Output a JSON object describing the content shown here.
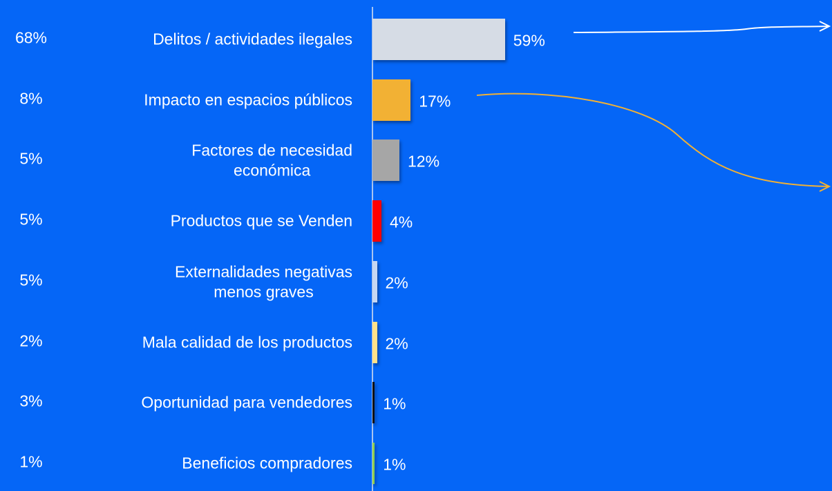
{
  "chart_data": {
    "type": "bar",
    "categories": [
      "Delitos / actividades ilegales",
      "Impacto en espacios públicos",
      "Factores de necesidad\neconómica",
      "Productos que se Venden",
      "Externalidades negativas\nmenos graves",
      "Mala calidad de los productos",
      "Oportunidad para vendedores",
      "Beneficios compradores"
    ],
    "values": [
      59,
      17,
      12,
      4,
      2,
      2,
      1,
      1
    ],
    "value_labels": [
      "59%",
      "17%",
      "12%",
      "4%",
      "2%",
      "2%",
      "1%",
      "1%"
    ],
    "colors": [
      "#d6dce5",
      "#f2b134",
      "#a6a6a6",
      "#ff0000",
      "#c5d6f2",
      "#ffe08a",
      "#111111",
      "#92d050"
    ],
    "left_values": [
      68,
      8,
      5,
      5,
      5,
      2,
      3,
      1
    ],
    "left_value_labels": [
      "68%",
      "8%",
      "5%",
      "5%",
      "5%",
      "2%",
      "3%",
      "1%"
    ]
  }
}
